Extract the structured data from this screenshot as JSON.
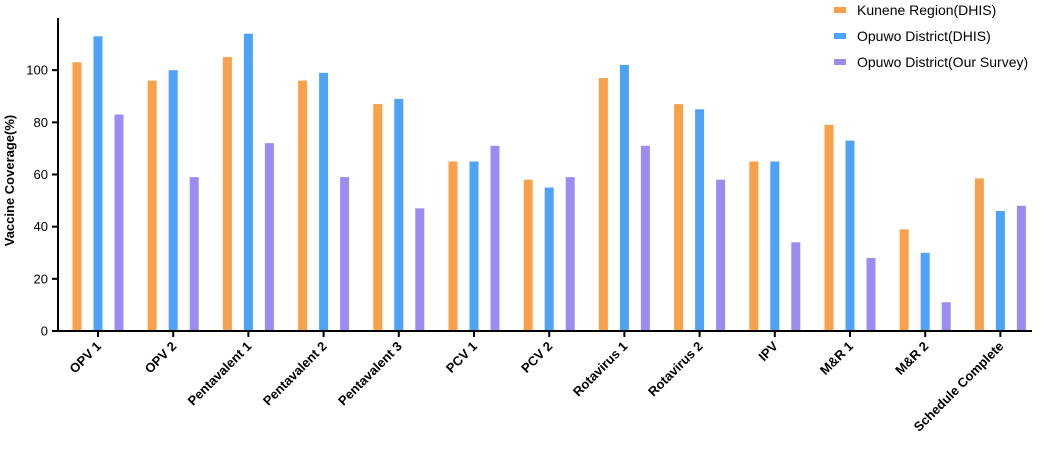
{
  "chart_data": {
    "type": "bar",
    "title": "",
    "xlabel": "",
    "ylabel": "Vaccine Coverage(%)",
    "ylim": [
      0,
      120
    ],
    "yticks": [
      0,
      20,
      40,
      60,
      80,
      100
    ],
    "grid": false,
    "legend_position": "top-right",
    "categories": [
      "OPV 1",
      "OPV 2",
      "Pentavalent 1",
      "Pentavalent 2",
      "Pentavalent 3",
      "PCV 1",
      "PCV 2",
      "Rotavirus 1",
      "Rotavirus 2",
      "IPV",
      "M&R 1",
      "M&R 2",
      "Schedule Complete"
    ],
    "series": [
      {
        "name": "Kunene Region(DHIS)",
        "color": "#F9A14A",
        "values": [
          103,
          96,
          105,
          96,
          87,
          65,
          58,
          97,
          87,
          65,
          79,
          39,
          58.5
        ]
      },
      {
        "name": "Opuwo District(DHIS)",
        "color": "#4FA3F7",
        "values": [
          113,
          100,
          114,
          99,
          89,
          65,
          55,
          102,
          85,
          65,
          73,
          30,
          46
        ]
      },
      {
        "name": "Opuwo District(Our Survey)",
        "color": "#9B8CF2",
        "values": [
          83,
          59,
          72,
          59,
          47,
          71,
          59,
          71,
          58,
          34,
          28,
          11,
          48
        ]
      }
    ]
  }
}
